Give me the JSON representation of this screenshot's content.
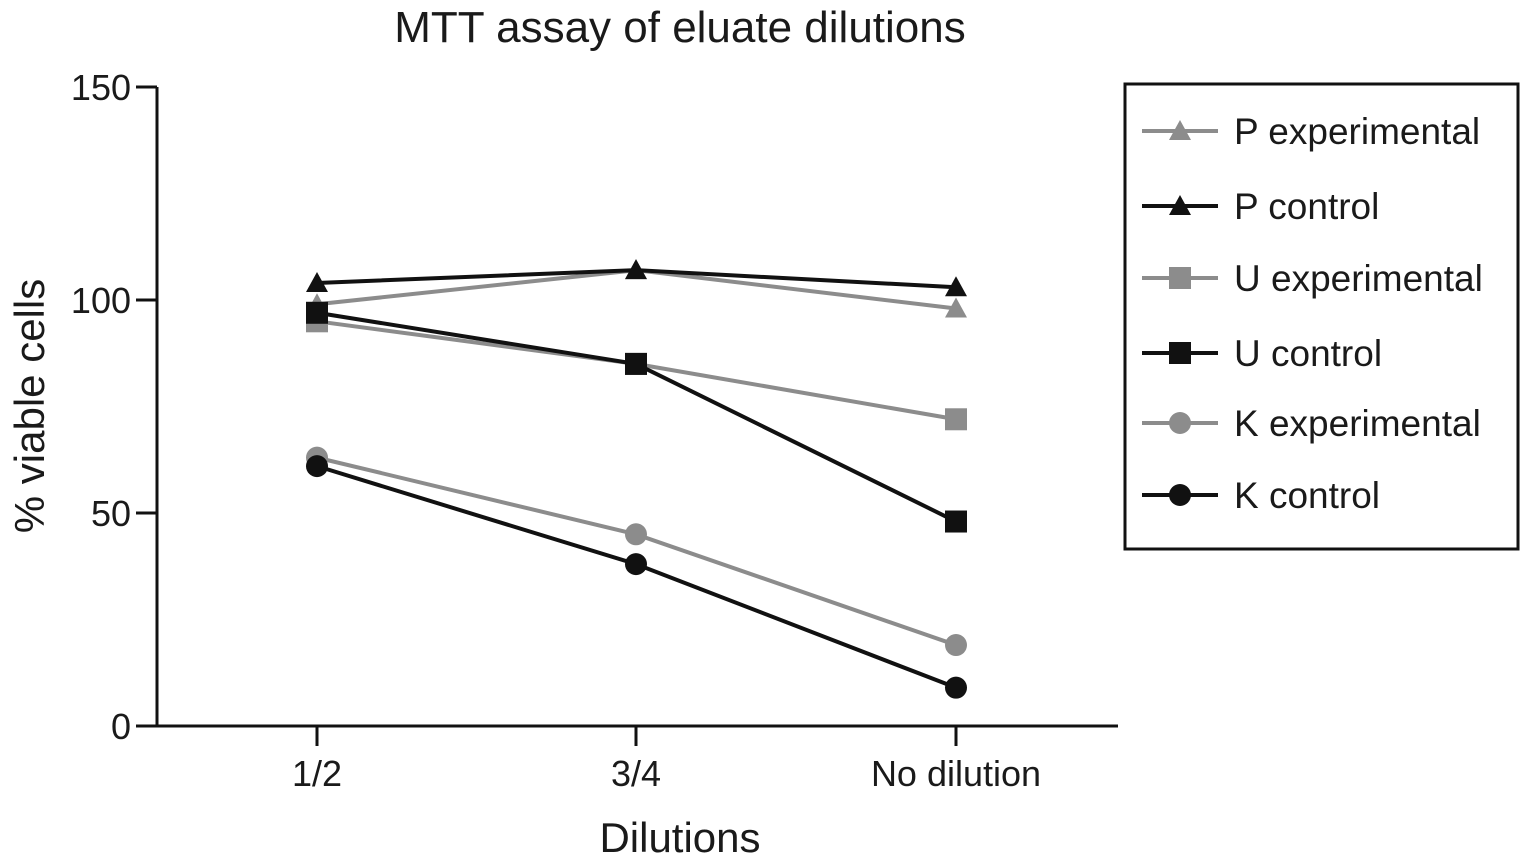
{
  "chart_data": {
    "type": "line",
    "title": "MTT assay of eluate dilutions",
    "xlabel": "Dilutions",
    "ylabel": "% viable cells",
    "categories": [
      "1/2",
      "3/4",
      "No dilution"
    ],
    "ylim": [
      0,
      150
    ],
    "yticks": [
      0,
      50,
      100,
      150
    ],
    "legend_position": "right",
    "series": [
      {
        "name": "P experimental",
        "marker": "triangle",
        "color": "#8c8c8c",
        "values": [
          99,
          107,
          98
        ]
      },
      {
        "name": "P control",
        "marker": "triangle",
        "color": "#111111",
        "values": [
          104,
          107,
          103
        ]
      },
      {
        "name": "U experimental",
        "marker": "square",
        "color": "#8c8c8c",
        "values": [
          95,
          85,
          72
        ]
      },
      {
        "name": "U control",
        "marker": "square",
        "color": "#111111",
        "values": [
          97,
          85,
          48
        ]
      },
      {
        "name": "K experimental",
        "marker": "circle",
        "color": "#8c8c8c",
        "values": [
          63,
          45,
          19
        ]
      },
      {
        "name": "K control",
        "marker": "circle",
        "color": "#111111",
        "values": [
          61,
          38,
          9
        ]
      }
    ]
  }
}
